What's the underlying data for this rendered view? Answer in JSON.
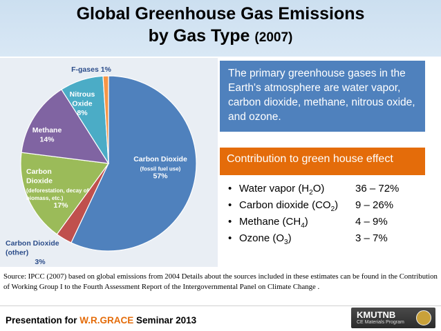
{
  "slide": {
    "title_line1": "Global Greenhouse Gas Emissions",
    "title_line2": "by Gas Type",
    "title_year": "(2007)",
    "info_text": "The primary greenhouse gases in the Earth's atmosphere are water vapor, carbon dioxide, methane, nitrous oxide, and ozone.",
    "contribution_header": "Contribution to green house effect",
    "contributions": [
      {
        "bullet": "•",
        "gas": "Water vapor",
        "formula_pre": "(H",
        "formula_sub": "2",
        "formula_post": "O)",
        "range": "36 – 72%"
      },
      {
        "bullet": "•",
        "gas": "Carbon dioxide",
        "formula_pre": "(CO",
        "formula_sub": "2",
        "formula_post": ")",
        "range": "9 – 26%"
      },
      {
        "bullet": "•",
        "gas": "Methane",
        "formula_pre": "(CH",
        "formula_sub": "4",
        "formula_post": ")",
        "range": "4 – 9%"
      },
      {
        "bullet": "•",
        "gas": "Ozone",
        "formula_pre": "(O",
        "formula_sub": "3",
        "formula_post": ")",
        "range": "3 – 7%"
      }
    ],
    "source": "Source: IPCC  (2007) based on global emissions from 2004  Details about the sources included in these estimates can be found in the Contribution of Working Group I to the Fourth Assessment Report of the Intergovernmental Panel on Climate Change .",
    "footer_prefix": "Presentation for ",
    "footer_highlight": "W.R.GRACE",
    "footer_suffix": " Seminar 2013",
    "logo_name": "KMUTNB",
    "logo_sub": "CE Materials Program"
  },
  "chart_data": {
    "type": "pie",
    "slices": [
      {
        "name": "Carbon Dioxide",
        "note": "(fossil fuel use)",
        "value": 57,
        "label": "57%",
        "color": "#4f81bd"
      },
      {
        "name": "Carbon Dioxide (other)",
        "note": "",
        "value": 3,
        "label": "3%",
        "color": "#c0504d"
      },
      {
        "name": "Carbon Dioxide",
        "note": "(deforestation, decay of biomass, etc.)",
        "value": 17,
        "label": "17%",
        "color": "#9bbb59"
      },
      {
        "name": "Methane",
        "note": "",
        "value": 14,
        "label": "14%",
        "color": "#8064a2"
      },
      {
        "name": "Nitrous Oxide",
        "note": "",
        "value": 8,
        "label": "8%",
        "color": "#4bacc6"
      },
      {
        "name": "F-gases",
        "note": "",
        "value": 1,
        "label": "1%",
        "color": "#f79646"
      }
    ],
    "label_color": "#ffffff",
    "outside_label_color": "#2c4d8a"
  }
}
